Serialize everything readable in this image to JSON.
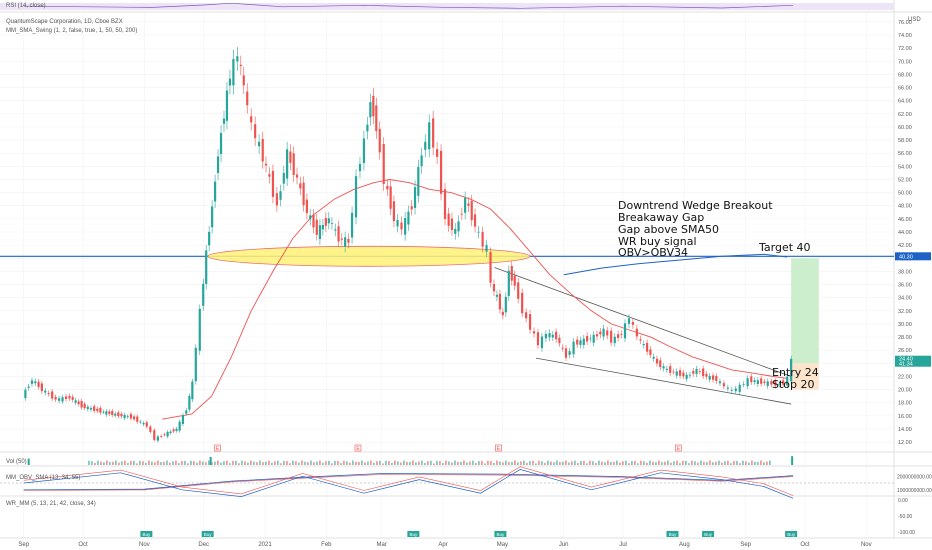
{
  "indicators": {
    "rsi": "RSI (14, close)",
    "title": "QuantumScape Corporation, 1D, Cboe BZX",
    "swing": "MM_SMA_Swing (1, 2, false, true, 1, 50, 50, 200)",
    "vol": "Vol (50)",
    "obv": "MM_OBV_SMA (13, 34, 55)",
    "wr": "WR_MM (5, 13, 21, 42, close, 34)"
  },
  "annotations": {
    "breakout_lines": [
      "Downtrend Wedge Breakout",
      "Breakaway Gap",
      "Gap above SMA50",
      "WR  buy signal",
      "OBV>OBV34"
    ],
    "target": "Target 40",
    "entry": "Entry 24",
    "stop": "Stop 20"
  },
  "markers": {
    "earnings": "E",
    "buy": "Buy"
  },
  "price_axis": {
    "currency": "USD",
    "ticks": [
      "76.00",
      "74.00",
      "72.00",
      "70.00",
      "68.00",
      "66.00",
      "64.00",
      "62.00",
      "60.00",
      "58.00",
      "56.00",
      "54.00",
      "52.00",
      "50.00",
      "48.00",
      "46.00",
      "44.00",
      "42.00",
      "40.00",
      "38.00",
      "36.00",
      "34.00",
      "32.00",
      "30.00",
      "28.00",
      "26.00",
      "24.00",
      "22.00",
      "20.00",
      "18.00",
      "16.00",
      "14.00",
      "12.00"
    ],
    "badge_level": "40.30",
    "badge_price": "24.40",
    "badge_sub": "41.34"
  },
  "panel_axes": {
    "obv_ticks": [
      "2000000000.00",
      "1000000000.00"
    ],
    "wr_ticks": [
      "0.00",
      "-50.00",
      "-100.00"
    ]
  },
  "time_axis": [
    "Sep",
    "Oct",
    "Nov",
    "Dec",
    "2021",
    "Feb",
    "Mar",
    "Apr",
    "May",
    "Jun",
    "Jul",
    "Aug",
    "Sep",
    "Oct",
    "Nov"
  ],
  "colors": {
    "up": "#26a69a",
    "down": "#ef5350",
    "sma": "#ef5350",
    "level": "#1e62c8",
    "ellipse": "#fff176",
    "target_zone": "#c8ecc8",
    "stop_zone": "#fde2c8"
  },
  "chart_data": {
    "type": "candlestick",
    "title": "QuantumScape Corporation, 1D, Cboe BZX",
    "y_unit": "USD",
    "ylim": [
      10.5,
      77.5
    ],
    "x_range": [
      "2020-08-20",
      "2021-11-15"
    ],
    "horizontal_level": 40.3,
    "target": 40,
    "entry": 24,
    "stop": 20,
    "price_path": [
      [
        "2020-09-01",
        19.0
      ],
      [
        "2020-09-06",
        21.5
      ],
      [
        "2020-09-11",
        20.0
      ],
      [
        "2020-09-18",
        18.5
      ],
      [
        "2020-09-25",
        18.8
      ],
      [
        "2020-10-01",
        17.5
      ],
      [
        "2020-10-09",
        16.8
      ],
      [
        "2020-10-18",
        16.2
      ],
      [
        "2020-10-26",
        15.8
      ],
      [
        "2020-11-03",
        14.5
      ],
      [
        "2020-11-07",
        12.5
      ],
      [
        "2020-11-12",
        13.2
      ],
      [
        "2020-11-18",
        14.0
      ],
      [
        "2020-11-23",
        17.0
      ],
      [
        "2020-11-26",
        21.0
      ],
      [
        "2020-11-30",
        32.0
      ],
      [
        "2020-12-03",
        41.0
      ],
      [
        "2020-12-06",
        48.0
      ],
      [
        "2020-12-09",
        56.0
      ],
      [
        "2020-12-12",
        62.0
      ],
      [
        "2020-12-15",
        68.0
      ],
      [
        "2020-12-19",
        71.0
      ],
      [
        "2020-12-22",
        66.0
      ],
      [
        "2020-12-26",
        60.0
      ],
      [
        "2020-12-30",
        57.0
      ],
      [
        "2021-01-04",
        52.0
      ],
      [
        "2021-01-08",
        48.0
      ],
      [
        "2021-01-13",
        56.0
      ],
      [
        "2021-01-18",
        52.0
      ],
      [
        "2021-01-23",
        47.0
      ],
      [
        "2021-01-28",
        44.0
      ],
      [
        "2021-02-03",
        46.0
      ],
      [
        "2021-02-08",
        43.0
      ],
      [
        "2021-02-13",
        42.5
      ],
      [
        "2021-02-17",
        52.0
      ],
      [
        "2021-02-21",
        58.0
      ],
      [
        "2021-02-24",
        64.0
      ],
      [
        "2021-02-27",
        60.0
      ],
      [
        "2021-03-03",
        52.0
      ],
      [
        "2021-03-08",
        46.0
      ],
      [
        "2021-03-12",
        44.5
      ],
      [
        "2021-03-17",
        48.0
      ],
      [
        "2021-03-22",
        56.0
      ],
      [
        "2021-03-26",
        60.0
      ],
      [
        "2021-03-30",
        55.0
      ],
      [
        "2021-04-03",
        46.0
      ],
      [
        "2021-04-08",
        44.0
      ],
      [
        "2021-04-13",
        49.0
      ],
      [
        "2021-04-18",
        45.0
      ],
      [
        "2021-04-22",
        42.0
      ],
      [
        "2021-04-24",
        41.5
      ],
      [
        "2021-04-26",
        36.0
      ],
      [
        "2021-04-29",
        34.0
      ],
      [
        "2021-05-02",
        31.0
      ],
      [
        "2021-05-05",
        38.0
      ],
      [
        "2021-05-08",
        36.0
      ],
      [
        "2021-05-12",
        32.0
      ],
      [
        "2021-05-16",
        29.5
      ],
      [
        "2021-05-20",
        27.0
      ],
      [
        "2021-05-24",
        28.5
      ],
      [
        "2021-05-29",
        28.0
      ],
      [
        "2021-06-03",
        25.0
      ],
      [
        "2021-06-07",
        27.0
      ],
      [
        "2021-06-12",
        27.5
      ],
      [
        "2021-06-17",
        28.0
      ],
      [
        "2021-06-22",
        29.0
      ],
      [
        "2021-06-26",
        27.5
      ],
      [
        "2021-07-01",
        28.5
      ],
      [
        "2021-07-05",
        31.0
      ],
      [
        "2021-07-09",
        28.0
      ],
      [
        "2021-07-14",
        26.0
      ],
      [
        "2021-07-19",
        24.0
      ],
      [
        "2021-07-24",
        23.0
      ],
      [
        "2021-07-29",
        22.5
      ],
      [
        "2021-08-03",
        22.0
      ],
      [
        "2021-08-08",
        23.0
      ],
      [
        "2021-08-13",
        22.0
      ],
      [
        "2021-08-18",
        21.5
      ],
      [
        "2021-08-22",
        20.5
      ],
      [
        "2021-08-26",
        19.8
      ],
      [
        "2021-08-30",
        20.5
      ],
      [
        "2021-09-03",
        21.5
      ],
      [
        "2021-09-08",
        21.2
      ],
      [
        "2021-09-13",
        21.0
      ],
      [
        "2021-09-17",
        20.8
      ],
      [
        "2021-09-21",
        21.0
      ],
      [
        "2021-09-23",
        21.8
      ],
      [
        "2021-09-25",
        24.4
      ]
    ],
    "sma50": [
      [
        "2020-11-10",
        15.5
      ],
      [
        "2020-11-25",
        16.3
      ],
      [
        "2020-12-05",
        19.0
      ],
      [
        "2020-12-15",
        25.0
      ],
      [
        "2020-12-25",
        32.0
      ],
      [
        "2021-01-05",
        38.0
      ],
      [
        "2021-01-15",
        43.0
      ],
      [
        "2021-01-25",
        46.5
      ],
      [
        "2021-02-05",
        49.0
      ],
      [
        "2021-02-15",
        50.5
      ],
      [
        "2021-02-25",
        51.5
      ],
      [
        "2021-03-05",
        52.0
      ],
      [
        "2021-03-15",
        51.5
      ],
      [
        "2021-03-25",
        50.5
      ],
      [
        "2021-04-05",
        50.0
      ],
      [
        "2021-04-15",
        49.0
      ],
      [
        "2021-04-25",
        47.5
      ],
      [
        "2021-05-05",
        44.5
      ],
      [
        "2021-05-15",
        41.0
      ],
      [
        "2021-05-25",
        37.5
      ],
      [
        "2021-06-05",
        34.5
      ],
      [
        "2021-06-15",
        32.0
      ],
      [
        "2021-06-25",
        30.0
      ],
      [
        "2021-07-05",
        29.0
      ],
      [
        "2021-07-15",
        28.0
      ],
      [
        "2021-07-25",
        26.5
      ],
      [
        "2021-08-05",
        25.0
      ],
      [
        "2021-08-15",
        24.0
      ],
      [
        "2021-08-25",
        23.0
      ],
      [
        "2021-09-05",
        22.5
      ],
      [
        "2021-09-15",
        22.0
      ],
      [
        "2021-09-22",
        21.7
      ]
    ],
    "sma200": [
      [
        "2021-06-01",
        37.5
      ],
      [
        "2021-06-20",
        38.5
      ],
      [
        "2021-07-10",
        39.2
      ],
      [
        "2021-08-01",
        39.8
      ],
      [
        "2021-08-20",
        40.3
      ],
      [
        "2021-09-10",
        40.6
      ],
      [
        "2021-09-22",
        40.2
      ]
    ],
    "wedge_upper": [
      [
        "2021-04-27",
        38.6
      ],
      [
        "2021-09-24",
        22.0
      ]
    ],
    "wedge_lower": [
      [
        "2021-05-18",
        24.8
      ],
      [
        "2021-09-24",
        17.8
      ]
    ],
    "earnings_dates": [
      "2020-12-08",
      "2021-02-17",
      "2021-04-29",
      "2021-07-29"
    ],
    "buy_dates": [
      "2020-11-02",
      "2020-12-03",
      "2021-03-17",
      "2021-04-30",
      "2021-07-26",
      "2021-08-13",
      "2021-09-24"
    ],
    "rsi": [
      [
        "2020-09-01",
        52
      ],
      [
        "2020-11-05",
        44
      ],
      [
        "2020-12-01",
        60
      ],
      [
        "2020-12-15",
        72
      ],
      [
        "2021-01-10",
        48
      ],
      [
        "2021-02-20",
        58
      ],
      [
        "2021-04-01",
        45
      ],
      [
        "2021-05-10",
        38
      ],
      [
        "2021-07-01",
        52
      ],
      [
        "2021-08-20",
        40
      ],
      [
        "2021-09-25",
        58
      ]
    ],
    "volume_spikes": [
      [
        "2020-09-03",
        1.6
      ],
      [
        "2020-12-04",
        2.0
      ],
      [
        "2021-09-24",
        2.2
      ]
    ],
    "obv": [
      [
        "2020-09-01",
        1.0
      ],
      [
        "2020-11-01",
        1.02
      ],
      [
        "2020-12-15",
        1.28
      ],
      [
        "2021-01-20",
        1.4
      ],
      [
        "2021-03-01",
        1.52
      ],
      [
        "2021-05-01",
        1.5
      ],
      [
        "2021-07-01",
        1.42
      ],
      [
        "2021-08-20",
        1.3
      ],
      [
        "2021-09-25",
        1.45
      ]
    ],
    "wr": [
      [
        "2020-09-01",
        -50
      ],
      [
        "2020-10-20",
        -80
      ],
      [
        "2020-11-20",
        -30
      ],
      [
        "2020-12-20",
        -10
      ],
      [
        "2021-01-20",
        -70
      ],
      [
        "2021-02-20",
        -20
      ],
      [
        "2021-03-20",
        -60
      ],
      [
        "2021-04-20",
        -20
      ],
      [
        "2021-05-10",
        -90
      ],
      [
        "2021-06-15",
        -30
      ],
      [
        "2021-07-20",
        -80
      ],
      [
        "2021-08-20",
        -60
      ],
      [
        "2021-09-10",
        -40
      ],
      [
        "2021-09-25",
        -5
      ]
    ]
  }
}
